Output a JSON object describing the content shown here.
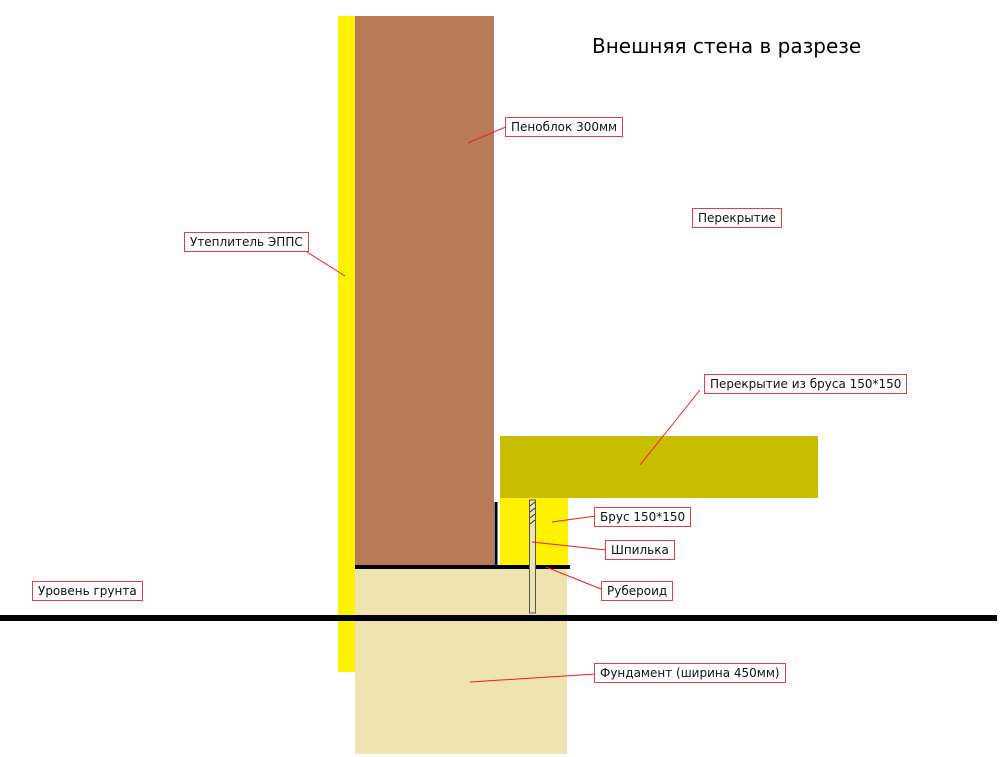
{
  "title": "Внешняя стена в разрезе",
  "labels": {
    "foam_block": "Пеноблок 300мм",
    "floor": "Перекрытие",
    "insulation": "Утеплитель ЭППС",
    "beam_floor": "Перекрытие из бруса 150*150",
    "beam": "Брус 150*150",
    "stud": "Шпилька",
    "roofing_felt": "Рубероид",
    "ground_level": "Уровень грунта",
    "foundation": "Фундамент (ширина 450мм)"
  },
  "colors": {
    "insulation": "#fff200",
    "foam_block": "#b97a57",
    "foundation": "#efe4b0",
    "beam_floor": "#c8bd00",
    "beam": "#fff200",
    "leader": "#ed1c24"
  }
}
